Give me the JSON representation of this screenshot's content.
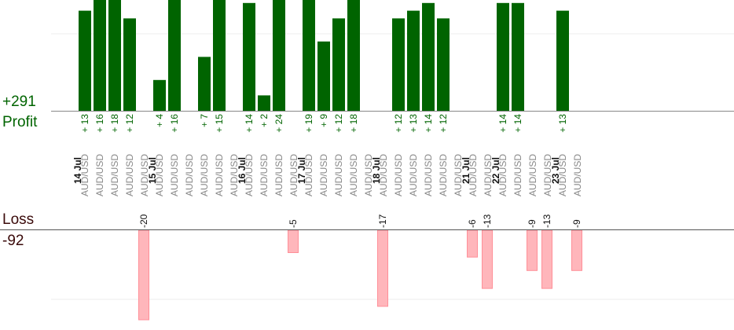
{
  "summary": {
    "profit_total": "+291",
    "profit_label": "Profit",
    "loss_label": "Loss",
    "loss_total": "-92"
  },
  "colors": {
    "profit_bar": "#006400",
    "profit_text": "#006400",
    "loss_bar": "#ffb6bb",
    "loss_border": "#ff8f98",
    "axis": "#888888",
    "grid": "#ececec",
    "pair_text": "#888888",
    "date_text": "#111111"
  },
  "chart_data": {
    "type": "bar",
    "pair": "AUD/USD",
    "days": [
      {
        "date": "14 Jul",
        "trades": [
          "+ 13",
          "+ 16",
          "+ 18",
          "+ 12",
          "-20"
        ]
      },
      {
        "date": "15 Jul",
        "trades": [
          "+ 4",
          "+ 16",
          "",
          "+ 7",
          "+ 15",
          ""
        ]
      },
      {
        "date": "16 Jul",
        "trades": [
          "+ 14",
          "+ 2",
          "+ 24",
          "-5"
        ]
      },
      {
        "date": "17 Jul",
        "trades": [
          "+ 19",
          "+ 9",
          "+ 12",
          "+ 18",
          ""
        ]
      },
      {
        "date": "18 Jul",
        "trades": [
          "-17",
          "+ 12",
          "+ 13",
          "+ 14",
          "+ 12",
          ""
        ]
      },
      {
        "date": "21 Jul",
        "trades": [
          "-6",
          "-13"
        ]
      },
      {
        "date": "22 Jul",
        "trades": [
          "+ 14",
          "+ 14",
          "-9",
          "-13"
        ]
      },
      {
        "date": "23 Jul",
        "trades": [
          "+ 13",
          "-9"
        ]
      }
    ],
    "values": [
      13,
      16,
      18,
      12,
      -20,
      4,
      16,
      0,
      7,
      15,
      0,
      14,
      2,
      24,
      -5,
      19,
      9,
      12,
      18,
      0,
      -17,
      12,
      13,
      14,
      12,
      0,
      -6,
      -13,
      14,
      14,
      -9,
      -13,
      13,
      -9
    ]
  }
}
